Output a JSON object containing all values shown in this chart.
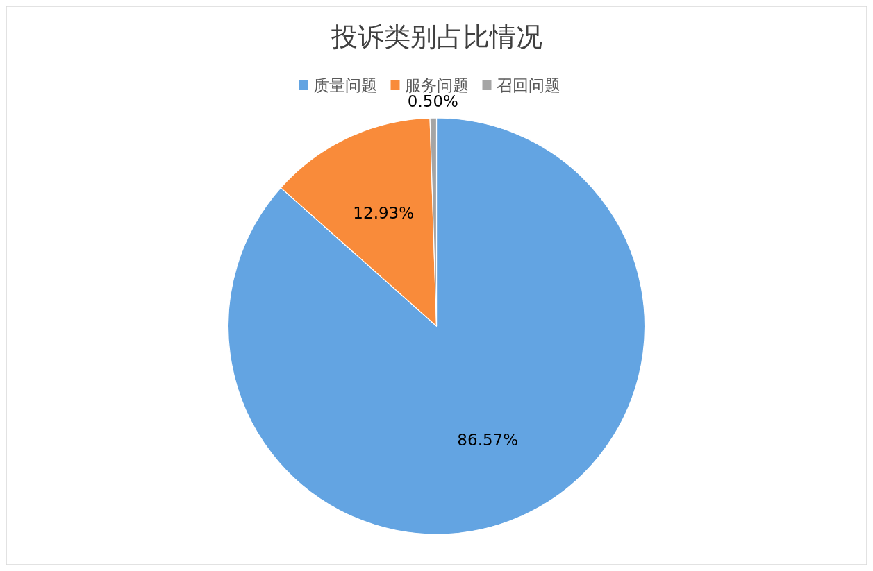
{
  "chart_data": {
    "type": "pie",
    "title": "投诉类别占比情况",
    "categories": [
      "质量问题",
      "服务问题",
      "召回问题"
    ],
    "values": [
      86.57,
      12.93,
      0.5
    ],
    "colors": [
      "#63a4e2",
      "#f98b3a",
      "#a5a5a5"
    ],
    "value_labels": [
      "86.57%",
      "12.93%",
      "0.50%"
    ],
    "legend": "top"
  }
}
